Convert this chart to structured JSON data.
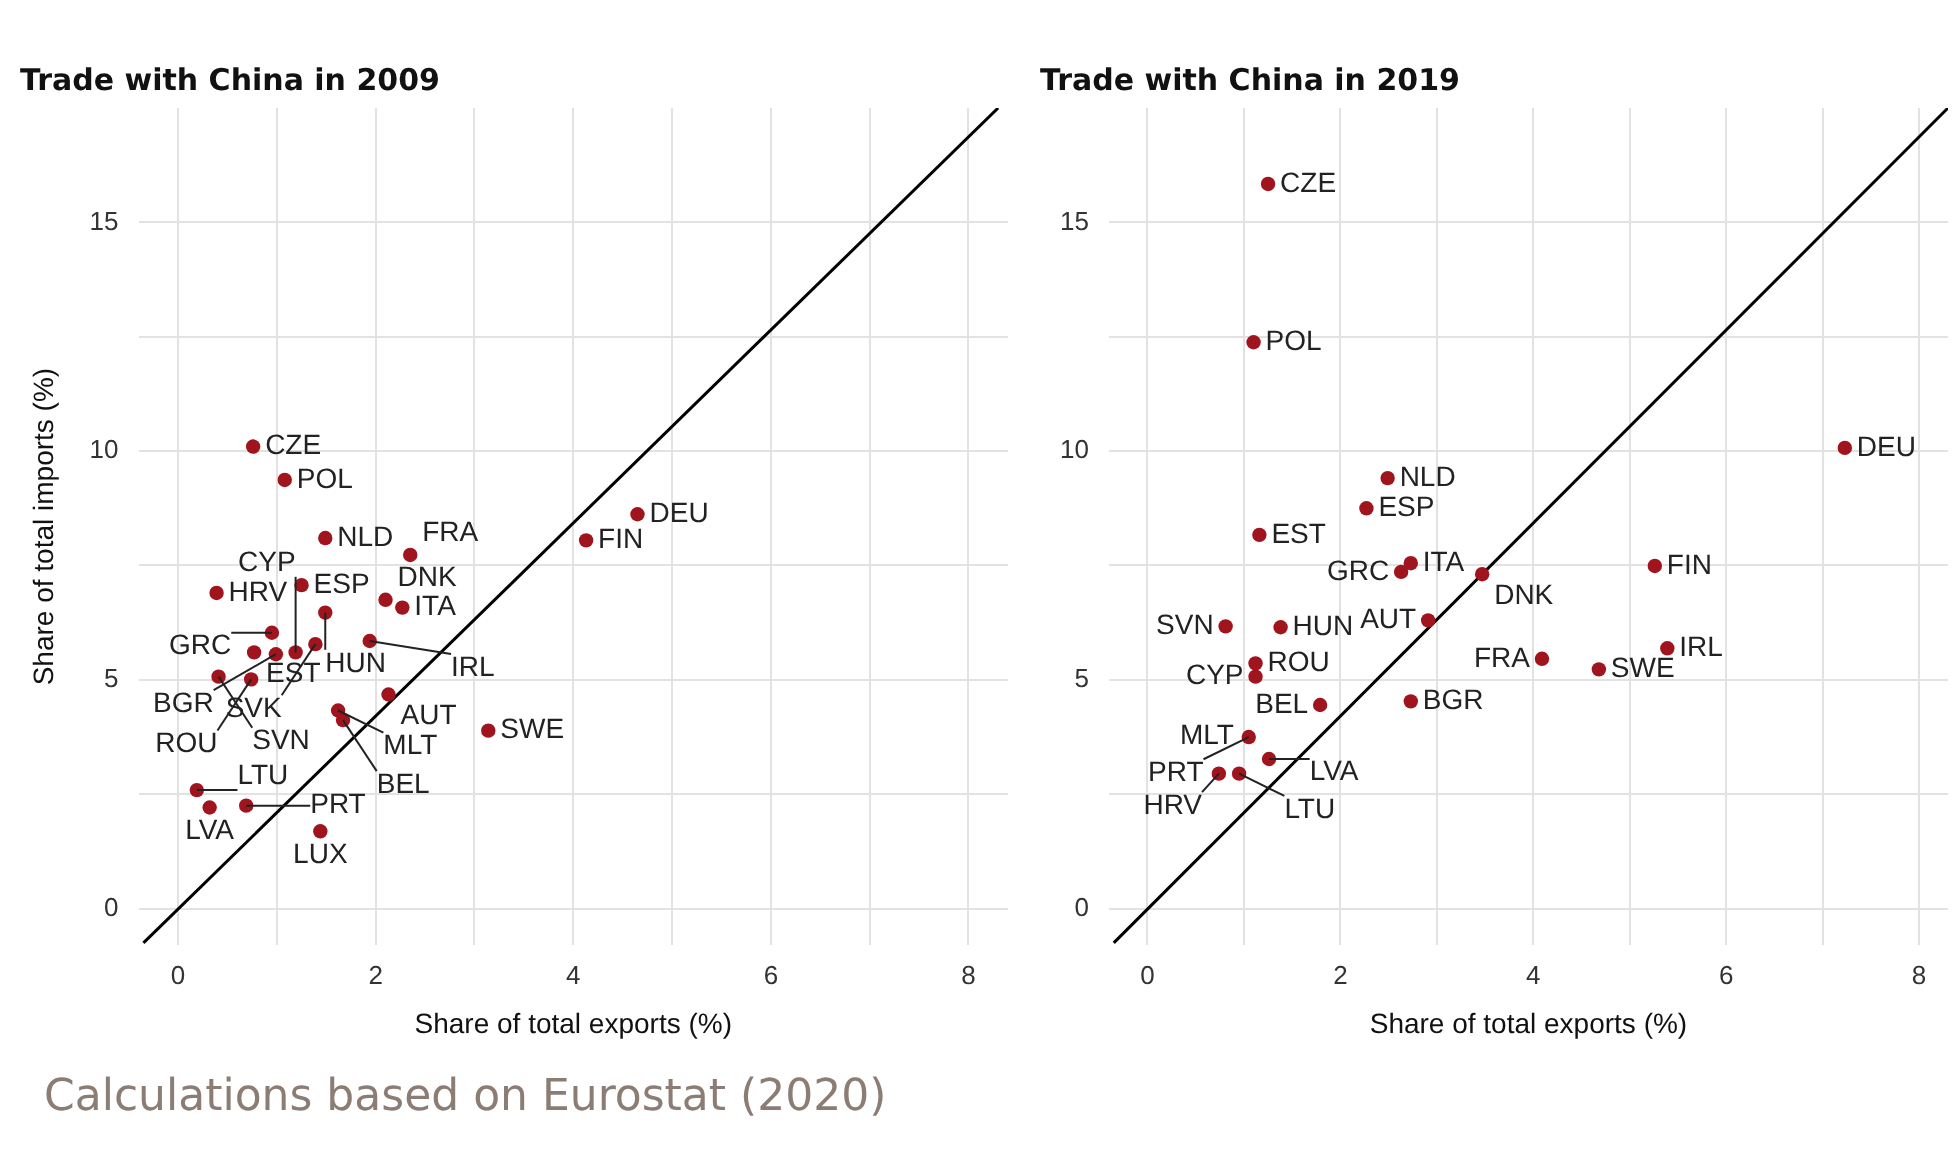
{
  "chart_data": [
    {
      "type": "scatter",
      "title": "Trade with China in 2009",
      "xlabel": "Share of total exports (%)",
      "ylabel": "Share of total imports (%)",
      "series": [
        {
          "type": "scatter",
          "marker": "circle",
          "color": "#a0141e",
          "x": [
            0.76,
            1.08,
            1.49,
            1.25,
            2.1,
            2.35,
            1.49,
            2.27,
            0.39,
            0.95,
            1.39,
            1.94,
            0.77,
            0.99,
            1.19,
            0.41,
            0.74,
            2.13,
            1.62,
            1.67,
            3.14,
            0.19,
            0.32,
            0.69,
            1.44,
            4.13,
            4.65
          ],
          "values": [
            10.1,
            9.37,
            8.1,
            7.07,
            6.75,
            7.73,
            6.47,
            6.58,
            6.9,
            6.03,
            5.78,
            5.85,
            5.6,
            5.56,
            5.6,
            5.07,
            5.01,
            4.68,
            4.33,
            4.12,
            3.89,
            2.59,
            2.21,
            2.25,
            1.69,
            8.05,
            8.62
          ]
        },
        {
          "type": "line",
          "color": "#000000",
          "x": [
            -0.35,
            8.3
          ],
          "values": [
            -0.75,
            17.5
          ]
        }
      ],
      "annotations": [
        {
          "text": "CZE",
          "x": 0.76,
          "y": 10.1
        },
        {
          "text": "POL",
          "x": 1.08,
          "y": 9.37
        },
        {
          "text": "NLD",
          "x": 1.49,
          "y": 8.1
        },
        {
          "text": "ESP",
          "x": 1.25,
          "y": 7.07
        },
        {
          "text": "DNK",
          "x": 2.1,
          "y": 6.75
        },
        {
          "text": "FRA",
          "x": 2.35,
          "y": 7.73
        },
        {
          "text": "HUN",
          "x": 1.49,
          "y": 6.47
        },
        {
          "text": "ITA",
          "x": 2.27,
          "y": 6.58
        },
        {
          "text": "HRV",
          "x": 0.39,
          "y": 6.9
        },
        {
          "text": "GRC",
          "x": 0.95,
          "y": 6.03
        },
        {
          "text": "SVK",
          "x": 1.39,
          "y": 5.78
        },
        {
          "text": "IRL",
          "x": 1.94,
          "y": 5.85
        },
        {
          "text": "EST",
          "x": 0.77,
          "y": 5.6
        },
        {
          "text": "BGR",
          "x": 0.99,
          "y": 5.56
        },
        {
          "text": "CYP",
          "x": 1.19,
          "y": 5.6
        },
        {
          "text": "SVN",
          "x": 0.41,
          "y": 5.07
        },
        {
          "text": "ROU",
          "x": 0.74,
          "y": 5.01
        },
        {
          "text": "AUT",
          "x": 2.13,
          "y": 4.68
        },
        {
          "text": "MLT",
          "x": 1.62,
          "y": 4.33
        },
        {
          "text": "BEL",
          "x": 1.67,
          "y": 4.12
        },
        {
          "text": "SWE",
          "x": 3.14,
          "y": 3.89
        },
        {
          "text": "LTU",
          "x": 0.19,
          "y": 2.59
        },
        {
          "text": "LVA",
          "x": 0.32,
          "y": 2.21
        },
        {
          "text": "PRT",
          "x": 0.69,
          "y": 2.25
        },
        {
          "text": "LUX",
          "x": 1.44,
          "y": 1.69
        },
        {
          "text": "FIN",
          "x": 4.13,
          "y": 8.05
        },
        {
          "text": "DEU",
          "x": 4.65,
          "y": 8.62
        },
        "Calculations based on Eurostat (2020)"
      ],
      "xlim": [
        -0.4,
        8.4
      ],
      "ylim": [
        -0.8,
        17.5
      ],
      "xticks": [
        0,
        {
          "value": 1,
          "label": null
        },
        2,
        {
          "value": 3,
          "label": null
        },
        4,
        {
          "value": 5,
          "label": null
        },
        6,
        {
          "value": 7,
          "label": null
        },
        8
      ],
      "yticks": [
        0,
        {
          "value": 2.5,
          "label": null
        },
        5,
        {
          "value": 7.5,
          "label": null
        },
        10,
        {
          "value": 12.5,
          "label": null
        },
        15
      ],
      "grid": true,
      "legend": false
    },
    {
      "type": "scatter",
      "title": "Trade with China in 2019",
      "xlabel": "Share of total exports (%)",
      "series": [
        {
          "type": "scatter",
          "marker": "circle",
          "color": "#a0141e",
          "x": [
            1.25,
            1.1,
            2.49,
            7.23,
            2.27,
            1.16,
            2.73,
            2.63,
            3.47,
            5.26,
            0.81,
            1.38,
            2.91,
            4.09,
            5.39,
            4.68,
            1.12,
            1.12,
            1.79,
            2.73,
            null,
            1.05,
            1.26,
            0.74,
            0.95
          ],
          "values": [
            15.84,
            12.38,
            9.41,
            10.07,
            8.75,
            8.17,
            7.55,
            7.36,
            7.31,
            7.49,
            6.17,
            6.15,
            6.3,
            5.46,
            5.69,
            5.23,
            5.36,
            5.07,
            4.45,
            4.53,
            null,
            3.75,
            3.27,
            2.95,
            2.95
          ]
        },
        {
          "type": "line",
          "color": "#000000",
          "x": [
            -0.35,
            8.3
          ],
          "values": [
            -0.75,
            17.5
          ]
        }
      ],
      "annotations": [
        {
          "text": "CZE",
          "x": 1.25,
          "y": 15.84
        },
        {
          "text": "POL",
          "x": 1.1,
          "y": 12.38
        },
        {
          "text": "NLD",
          "x": 2.49,
          "y": 9.41
        },
        {
          "text": "DEU",
          "x": 7.23,
          "y": 10.07
        },
        {
          "text": "ESP",
          "x": 2.27,
          "y": 8.75
        },
        {
          "text": "EST",
          "x": 1.16,
          "y": 8.17
        },
        {
          "text": "ITA",
          "x": 2.73,
          "y": 7.55
        },
        {
          "text": "GRC",
          "x": 2.63,
          "y": 7.36
        },
        {
          "text": "DNK",
          "x": 3.47,
          "y": 7.31
        },
        {
          "text": "FIN",
          "x": 5.26,
          "y": 7.49
        },
        {
          "text": "SVN",
          "x": 0.81,
          "y": 6.17
        },
        {
          "text": "HUN",
          "x": 1.38,
          "y": 6.15
        },
        {
          "text": "AUT",
          "x": 2.91,
          "y": 6.3
        },
        {
          "text": "FRA",
          "x": 4.09,
          "y": 5.46
        },
        {
          "text": "IRL",
          "x": 5.39,
          "y": 5.69
        },
        {
          "text": "SWE",
          "x": 4.68,
          "y": 5.23
        },
        {
          "text": "ROU",
          "x": 1.12,
          "y": 5.36
        },
        {
          "text": "CYP",
          "x": 1.12,
          "y": 5.07
        },
        {
          "text": "BEL",
          "x": 1.79,
          "y": 4.45
        },
        {
          "text": "BGR",
          "x": 2.73,
          "y": 4.53
        },
        {
          "text": "MLT",
          "x": 1.02,
          "y": 3.77
        },
        {
          "text": "PRT",
          "x": 1.05,
          "y": 3.75
        },
        {
          "text": "LVA",
          "x": 1.26,
          "y": 3.27
        },
        {
          "text": "HRV",
          "x": 0.74,
          "y": 2.95
        },
        {
          "text": "LTU",
          "x": 0.95,
          "y": 2.95
        }
      ],
      "xlim": [
        -0.4,
        8.3
      ],
      "ylim": [
        -0.8,
        17.5
      ],
      "xticks": [
        0,
        {
          "value": 1,
          "label": null
        },
        2,
        {
          "value": 3,
          "label": null
        },
        4,
        {
          "value": 5,
          "label": null
        },
        6,
        {
          "value": 7,
          "label": null
        },
        8
      ],
      "yticks": [
        0,
        {
          "value": 2.5,
          "label": null
        },
        5,
        {
          "value": 7.5,
          "label": null
        },
        10,
        {
          "value": 12.5,
          "label": null
        },
        15
      ],
      "grid": true,
      "legend": false
    }
  ]
}
